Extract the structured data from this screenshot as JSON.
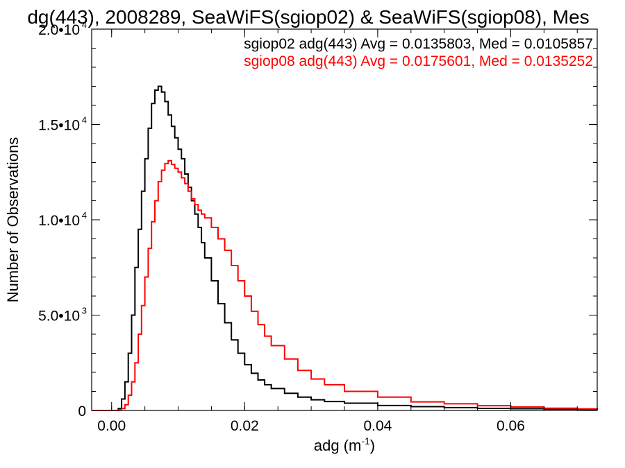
{
  "chart_data": {
    "type": "line",
    "title": "dg(443), 2008289, SeaWiFS(sgiop02) & SeaWiFS(sgiop08), Mes",
    "xlabel": "adg (m",
    "xlabel_sup": "-1",
    "xlabel_close": ")",
    "ylabel": "Number of Observations",
    "xlim": [
      -0.003,
      0.073
    ],
    "ylim": [
      0,
      20000
    ],
    "x_ticks": [
      {
        "value": 0.0,
        "label": "0.00"
      },
      {
        "value": 0.02,
        "label": "0.02"
      },
      {
        "value": 0.04,
        "label": "0.04"
      },
      {
        "value": 0.06,
        "label": "0.06"
      }
    ],
    "y_ticks": [
      {
        "value": 0,
        "mantissa": "0",
        "exp": ""
      },
      {
        "value": 5000,
        "mantissa": "5.0•10",
        "exp": "3"
      },
      {
        "value": 10000,
        "mantissa": "1.0•10",
        "exp": "4"
      },
      {
        "value": 15000,
        "mantissa": "1.5•10",
        "exp": "4"
      },
      {
        "value": 20000,
        "mantissa": "2.0•10",
        "exp": "4"
      }
    ],
    "grid": false,
    "legend_placement": "top-right",
    "series": [
      {
        "name": "sgiop02",
        "legend": "sgiop02 adg(443) Avg = 0.0135803, Med = 0.0105857",
        "color": "#000000",
        "x": [
          -0.003,
          0.0,
          0.001,
          0.0015,
          0.002,
          0.0025,
          0.003,
          0.0035,
          0.004,
          0.0045,
          0.005,
          0.0055,
          0.006,
          0.0065,
          0.007,
          0.0075,
          0.008,
          0.0085,
          0.009,
          0.0095,
          0.01,
          0.0105,
          0.011,
          0.0115,
          0.012,
          0.0125,
          0.013,
          0.0135,
          0.014,
          0.015,
          0.016,
          0.017,
          0.018,
          0.019,
          0.02,
          0.021,
          0.022,
          0.023,
          0.024,
          0.026,
          0.028,
          0.03,
          0.032,
          0.035,
          0.04,
          0.045,
          0.05,
          0.055,
          0.06,
          0.065,
          0.07,
          0.073
        ],
        "y": [
          0,
          0,
          100,
          600,
          1500,
          3000,
          5000,
          7500,
          9500,
          11500,
          13200,
          14800,
          16100,
          16800,
          17000,
          16700,
          16200,
          15500,
          14900,
          14300,
          13700,
          13200,
          12400,
          11700,
          11000,
          10300,
          9600,
          8800,
          8000,
          6800,
          5600,
          4600,
          3700,
          3000,
          2400,
          1950,
          1600,
          1350,
          1150,
          900,
          700,
          560,
          470,
          380,
          260,
          200,
          150,
          110,
          90,
          70,
          50,
          40
        ]
      },
      {
        "name": "sgiop08",
        "legend": "sgiop08 adg(443) Avg = 0.0175601, Med = 0.0135252",
        "color": "#ff0000",
        "x": [
          -0.003,
          0.0,
          0.001,
          0.0015,
          0.002,
          0.0025,
          0.003,
          0.0035,
          0.004,
          0.0045,
          0.005,
          0.0055,
          0.006,
          0.0065,
          0.007,
          0.0075,
          0.008,
          0.0085,
          0.009,
          0.0095,
          0.01,
          0.0105,
          0.011,
          0.0115,
          0.012,
          0.0125,
          0.013,
          0.0135,
          0.014,
          0.015,
          0.016,
          0.017,
          0.018,
          0.019,
          0.02,
          0.021,
          0.022,
          0.023,
          0.024,
          0.026,
          0.028,
          0.03,
          0.032,
          0.035,
          0.04,
          0.045,
          0.05,
          0.055,
          0.06,
          0.065,
          0.07,
          0.073
        ],
        "y": [
          0,
          0,
          20,
          100,
          300,
          800,
          1500,
          2500,
          4000,
          5500,
          7000,
          8500,
          9900,
          11000,
          12000,
          12600,
          12950,
          13100,
          12900,
          12700,
          12500,
          12200,
          11900,
          11500,
          11100,
          10800,
          10500,
          10300,
          10100,
          9600,
          9000,
          8400,
          7600,
          6800,
          6000,
          5200,
          4500,
          3900,
          3400,
          2700,
          2100,
          1650,
          1350,
          1000,
          700,
          450,
          350,
          250,
          180,
          120,
          80,
          60
        ]
      }
    ]
  }
}
